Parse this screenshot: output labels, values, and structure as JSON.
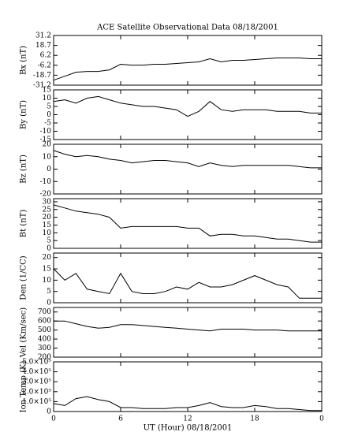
{
  "chart_data": [
    {
      "type": "line",
      "title": "ACE Satellite Observational Data  08/18/2001",
      "ylabel": "Bx (nT)",
      "color": "#000000",
      "x": [
        0,
        1,
        2,
        3,
        4,
        5,
        6,
        7,
        8,
        9,
        10,
        11,
        12,
        13,
        14,
        15,
        16,
        17,
        18,
        19,
        20,
        21,
        22,
        23,
        24
      ],
      "values": [
        -25,
        -20,
        -15,
        -14,
        -14,
        -12,
        -5,
        -6,
        -6,
        -5,
        -5,
        -4,
        -3,
        -2,
        2,
        -2,
        0,
        0,
        1,
        2,
        3,
        3,
        3,
        2,
        2
      ],
      "xlim": [
        0,
        24
      ],
      "ylim": [
        -31.2,
        31.2
      ],
      "yticks": [
        -31.2,
        -18.7,
        -6.2,
        6.2,
        18.7,
        31.2
      ]
    },
    {
      "type": "line",
      "ylabel": "By (nT)",
      "color": "#000000",
      "x": [
        0,
        1,
        2,
        3,
        4,
        5,
        6,
        7,
        8,
        9,
        10,
        11,
        12,
        13,
        14,
        15,
        16,
        17,
        18,
        19,
        20,
        21,
        22,
        23,
        24
      ],
      "values": [
        8,
        9,
        7,
        10,
        11,
        9,
        7,
        6,
        5,
        5,
        4,
        3,
        -1,
        2,
        8,
        3,
        2,
        3,
        3,
        3,
        2,
        2,
        2,
        1,
        1
      ],
      "xlim": [
        0,
        24
      ],
      "ylim": [
        -15,
        15
      ],
      "yticks": [
        -15,
        -10,
        -5,
        0,
        5,
        10,
        15
      ]
    },
    {
      "type": "line",
      "ylabel": "Bz (nT)",
      "color": "#000000",
      "x": [
        0,
        1,
        2,
        3,
        4,
        5,
        6,
        7,
        8,
        9,
        10,
        11,
        12,
        13,
        14,
        15,
        16,
        17,
        18,
        19,
        20,
        21,
        22,
        23,
        24
      ],
      "values": [
        15,
        12,
        10,
        11,
        10,
        8,
        7,
        5,
        6,
        7,
        7,
        6,
        5,
        2,
        5,
        3,
        2,
        3,
        3,
        3,
        3,
        3,
        2,
        1,
        1
      ],
      "xlim": [
        0,
        24
      ],
      "ylim": [
        -20,
        20
      ],
      "yticks": [
        -20,
        -10,
        0,
        10,
        20
      ]
    },
    {
      "type": "line",
      "ylabel": "Bt (nT)",
      "color": "#000000",
      "x": [
        0,
        1,
        2,
        3,
        4,
        5,
        6,
        7,
        8,
        9,
        10,
        11,
        12,
        13,
        14,
        15,
        16,
        17,
        18,
        19,
        20,
        21,
        22,
        23,
        24
      ],
      "values": [
        28,
        26,
        24,
        23,
        22,
        20,
        13,
        14,
        14,
        14,
        14,
        14,
        13,
        13,
        8,
        9,
        9,
        8,
        8,
        7,
        6,
        6,
        5,
        4,
        4
      ],
      "xlim": [
        0,
        24
      ],
      "ylim": [
        0,
        32
      ],
      "yticks": [
        0,
        5,
        10,
        15,
        20,
        25,
        30
      ]
    },
    {
      "type": "line",
      "ylabel": "Den (1/CC)",
      "color": "#000000",
      "x": [
        0,
        1,
        2,
        3,
        4,
        5,
        6,
        7,
        8,
        9,
        10,
        11,
        12,
        13,
        14,
        15,
        16,
        17,
        18,
        19,
        20,
        21,
        22,
        23,
        24
      ],
      "values": [
        15,
        10,
        13,
        6,
        5,
        4,
        13,
        5,
        4,
        4,
        5,
        7,
        6,
        9,
        7,
        7,
        8,
        10,
        12,
        10,
        8,
        7,
        2,
        2,
        2
      ],
      "xlim": [
        0,
        24
      ],
      "ylim": [
        0,
        22
      ],
      "yticks": [
        0,
        5,
        10,
        15,
        20
      ]
    },
    {
      "type": "line",
      "ylabel": "Vel (Km/sec)",
      "color": "#000000",
      "x": [
        0,
        1,
        2,
        3,
        4,
        5,
        6,
        7,
        8,
        9,
        10,
        11,
        12,
        13,
        14,
        15,
        16,
        17,
        18,
        19,
        20,
        21,
        22,
        23,
        24
      ],
      "values": [
        600,
        600,
        570,
        540,
        520,
        530,
        560,
        560,
        550,
        540,
        530,
        520,
        510,
        500,
        490,
        510,
        510,
        510,
        500,
        500,
        500,
        490,
        490,
        490,
        490
      ],
      "xlim": [
        0,
        24
      ],
      "ylim": [
        200,
        750
      ],
      "yticks": [
        200,
        300,
        400,
        500,
        600,
        700
      ]
    },
    {
      "type": "line",
      "ylabel": "Ion Temp (K)",
      "xlabel": "UT (Hour)  08/18/2001",
      "color": "#000000",
      "x": [
        0,
        1,
        2,
        3,
        4,
        5,
        6,
        7,
        8,
        9,
        10,
        11,
        12,
        13,
        14,
        15,
        16,
        17,
        18,
        19,
        20,
        21,
        22,
        23,
        24
      ],
      "values": [
        80000,
        60000,
        130000,
        150000,
        120000,
        100000,
        40000,
        40000,
        30000,
        30000,
        30000,
        40000,
        40000,
        60000,
        90000,
        50000,
        40000,
        40000,
        60000,
        50000,
        30000,
        30000,
        20000,
        10000,
        10000
      ],
      "xlim": [
        0,
        24
      ],
      "ylim": [
        0,
        500000
      ],
      "yticks": [
        0,
        {
          "value": 100000,
          "label": "1.0×10⁵"
        },
        {
          "value": 200000,
          "label": "2.0×10⁵"
        },
        {
          "value": 300000,
          "label": "3.0×10⁵"
        },
        {
          "value": 400000,
          "label": "4.0×10⁵"
        },
        {
          "value": 500000,
          "label": "5.0×10⁵"
        }
      ],
      "xticks": [
        0,
        6,
        12,
        18,
        {
          "value": 24,
          "label": "0"
        }
      ]
    }
  ]
}
